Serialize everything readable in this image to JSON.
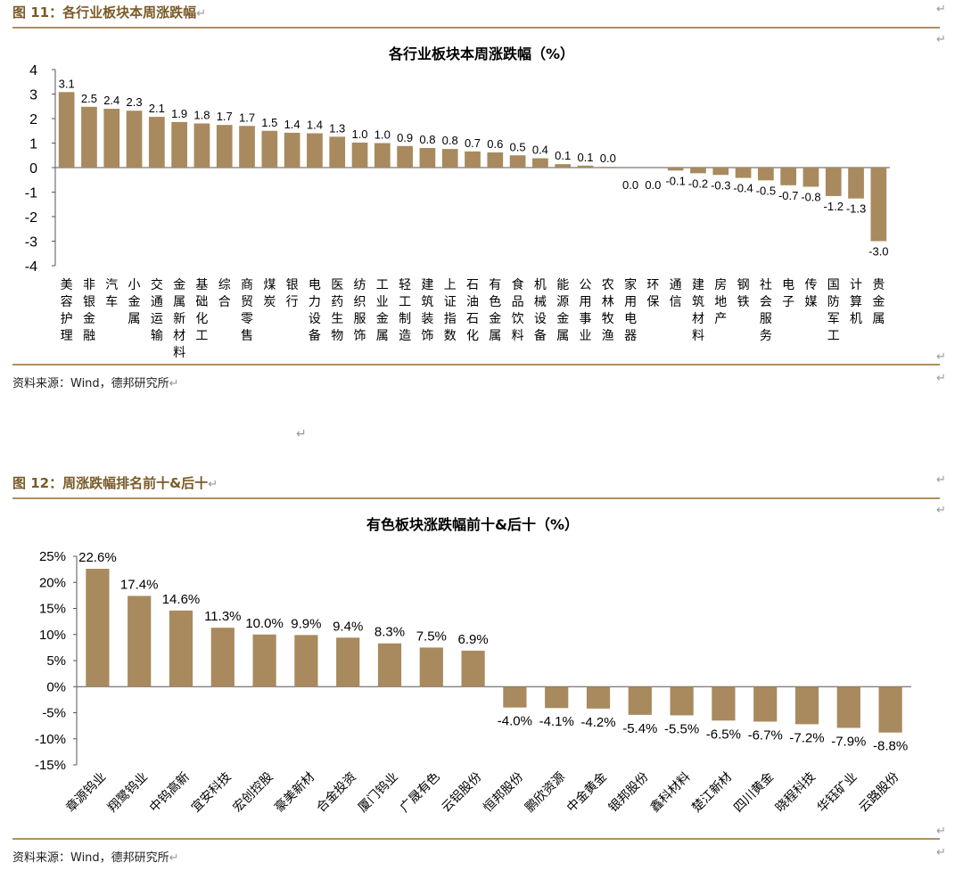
{
  "figures": [
    {
      "label": "图 11：各行业板块本周涨跌幅",
      "source": "资料来源：Wind，德邦研究所"
    },
    {
      "label": "图 12：周涨跌幅排名前十&后十",
      "source": "资料来源：Wind，德邦研究所"
    }
  ],
  "return_mark": "↵",
  "colors": {
    "bar": "#a88a5e",
    "accent": "#7a5a28",
    "rule": "#b08f63"
  },
  "chart_data": [
    {
      "type": "bar",
      "title": "各行业板块本周涨跌幅（%）",
      "xlabel": "",
      "ylabel": "",
      "ylim": [
        -4,
        4
      ],
      "yticks": [
        "4",
        "3",
        "2",
        "1",
        "0",
        "-1",
        "-2",
        "-3",
        "-4"
      ],
      "categories": [
        "美容护理",
        "非银金融",
        "汽车",
        "小金属",
        "交通运输",
        "金属新材料",
        "基础化工",
        "综合",
        "商贸零售",
        "煤炭",
        "银行",
        "电力设备",
        "医药生物",
        "纺织服饰",
        "工业金属",
        "轻工制造",
        "建筑装饰",
        "上证指数",
        "石油石化",
        "有色金属",
        "食品饮料",
        "机械设备",
        "能源金属",
        "公用事业",
        "农林牧渔",
        "家用电器",
        "环保",
        "通信",
        "建筑材料",
        "房地产",
        "钢铁",
        "社会服务",
        "电子",
        "传媒",
        "国防军工",
        "计算机",
        "贵金属"
      ],
      "values": [
        3.08,
        2.48,
        2.4,
        2.32,
        2.07,
        1.86,
        1.8,
        1.74,
        1.7,
        1.5,
        1.42,
        1.4,
        1.26,
        1.02,
        1.0,
        0.88,
        0.8,
        0.76,
        0.66,
        0.62,
        0.5,
        0.38,
        0.14,
        0.08,
        0.03,
        0.0,
        0.0,
        -0.12,
        -0.23,
        -0.3,
        -0.42,
        -0.52,
        -0.72,
        -0.78,
        -1.16,
        -1.26,
        -3.0
      ],
      "data_labels": [
        "3.1",
        "2.5",
        "2.4",
        "2.3",
        "2.1",
        "1.9",
        "1.8",
        "1.7",
        "1.7",
        "1.5",
        "1.4",
        "1.4",
        "1.3",
        "1.0",
        "1.0",
        "0.9",
        "0.8",
        "0.8",
        "0.7",
        "0.6",
        "0.5",
        "0.4",
        "0.1",
        "0.1",
        "0.0",
        "0.0",
        "0.0",
        "-0.1",
        "-0.2",
        "-0.3",
        "-0.4",
        "-0.5",
        "-0.7",
        "-0.8",
        "-1.2",
        "-1.3",
        "-3.0"
      ],
      "grid": false,
      "legend": "none"
    },
    {
      "type": "bar",
      "title": "有色板块涨跌幅前十&后十（%）",
      "xlabel": "",
      "ylabel": "",
      "ylim": [
        -15,
        25
      ],
      "yticks": [
        "25%",
        "20%",
        "15%",
        "10%",
        "5%",
        "0%",
        "-5%",
        "-10%",
        "-15%"
      ],
      "categories": [
        "章源钨业",
        "翔鹭钨业",
        "中钨高新",
        "宜安科技",
        "宏创控股",
        "豪美新材",
        "合金投资",
        "厦门钨业",
        "广晟有色",
        "云铝股份",
        "恒邦股份",
        "鹏欣资源",
        "中金黄金",
        "银邦股份",
        "鑫科材料",
        "楚江新材",
        "四川黄金",
        "晓程科技",
        "华钰矿业",
        "云路股份"
      ],
      "values": [
        22.6,
        17.4,
        14.6,
        11.3,
        10.0,
        9.9,
        9.4,
        8.3,
        7.5,
        6.9,
        -4.0,
        -4.1,
        -4.2,
        -5.4,
        -5.5,
        -6.5,
        -6.7,
        -7.2,
        -7.9,
        -8.8
      ],
      "data_labels": [
        "22.6%",
        "17.4%",
        "14.6%",
        "11.3%",
        "10.0%",
        "9.9%",
        "9.4%",
        "8.3%",
        "7.5%",
        "6.9%",
        "-4.0%",
        "-4.1%",
        "-4.2%",
        "-5.4%",
        "-5.5%",
        "-6.5%",
        "-6.7%",
        "-7.2%",
        "-7.9%",
        "-8.8%"
      ],
      "grid": false,
      "legend": "none"
    }
  ]
}
